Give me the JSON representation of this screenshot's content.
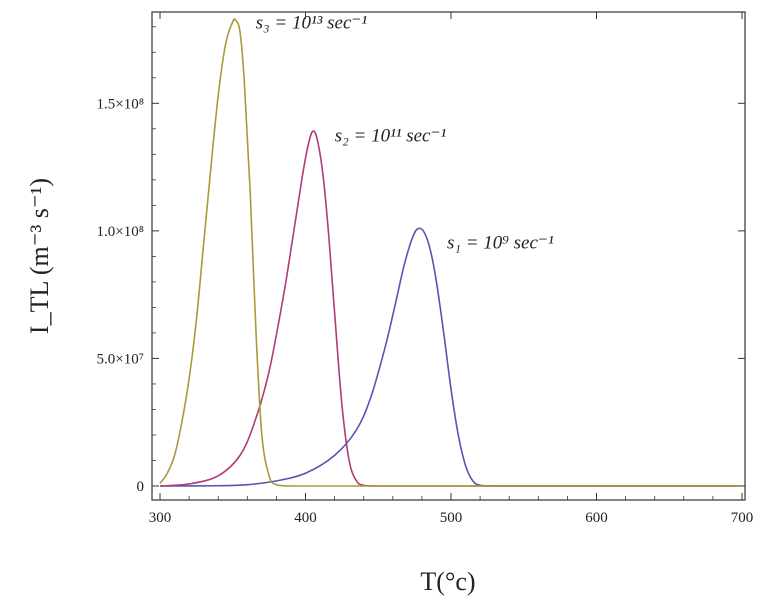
{
  "chart_data": {
    "type": "line",
    "title": "",
    "xlabel": "T(°c)",
    "ylabel": "I_TL (m⁻³ s⁻¹)",
    "xlim": [
      300,
      700
    ],
    "ylim": [
      0,
      185000000
    ],
    "grid": false,
    "legend": "none",
    "x_ticks": [
      {
        "value": 300,
        "label": "300"
      },
      {
        "value": 400,
        "label": "400"
      },
      {
        "value": 500,
        "label": "500"
      },
      {
        "value": 600,
        "label": "600"
      },
      {
        "value": 700,
        "label": "700"
      }
    ],
    "y_ticks": [
      {
        "value": 0,
        "label": "0"
      },
      {
        "value": 50000000,
        "label": "5.0×10⁷"
      },
      {
        "value": 100000000,
        "label": "1.0×10⁸"
      },
      {
        "value": 150000000,
        "label": "1.5×10⁸"
      }
    ],
    "series": [
      {
        "label": "s₁ = 10⁹ sec⁻¹",
        "color": "#5555b2",
        "x": [
          300,
          340,
          360,
          380,
          400,
          420,
          435,
          445,
          455,
          462,
          468,
          474,
          478,
          482,
          486,
          490,
          495,
          500,
          505,
          510,
          515,
          520,
          530,
          560,
          600,
          650,
          700
        ],
        "y": [
          0,
          100000,
          500000,
          2000000,
          5000000,
          12000000,
          22000000,
          35000000,
          55000000,
          72000000,
          87000000,
          98000000,
          101000000,
          99000000,
          92000000,
          80000000,
          60000000,
          38000000,
          20000000,
          8000000,
          2000000,
          300000,
          0,
          0,
          0,
          0,
          0
        ]
      },
      {
        "label": "s₂ = 10¹¹ sec⁻¹",
        "color": "#b03a7a",
        "x": [
          300,
          320,
          340,
          355,
          365,
          375,
          385,
          392,
          398,
          402,
          405,
          408,
          412,
          416,
          420,
          425,
          430,
          435,
          440,
          450,
          500,
          600,
          700
        ],
        "y": [
          0,
          800000,
          4000000,
          12000000,
          25000000,
          45000000,
          75000000,
          100000000,
          122000000,
          134000000,
          139000000,
          136000000,
          122000000,
          98000000,
          68000000,
          32000000,
          10000000,
          2000000,
          300000,
          0,
          0,
          0,
          0
        ],
        "label_anchor_x": 403
      },
      {
        "label": "s₃ = 10¹³ sec⁻¹",
        "color": "#a89a3c",
        "x": [
          300,
          305,
          310,
          315,
          320,
          325,
          330,
          335,
          340,
          345,
          350,
          352,
          355,
          358,
          362,
          366,
          370,
          375,
          380,
          390,
          400,
          500,
          700
        ],
        "y": [
          1000000,
          5000000,
          12000000,
          25000000,
          42000000,
          65000000,
          95000000,
          125000000,
          153000000,
          173000000,
          182000000,
          182500000,
          178000000,
          158000000,
          115000000,
          60000000,
          20000000,
          4000000,
          500000,
          0,
          0,
          0,
          0
        ]
      }
    ]
  }
}
